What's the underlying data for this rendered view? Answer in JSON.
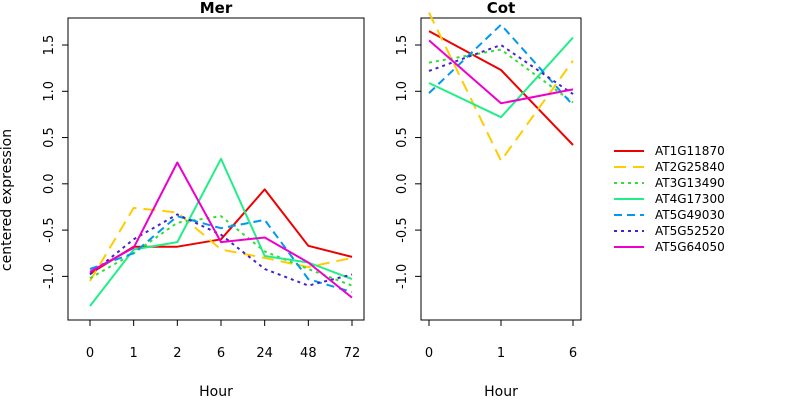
{
  "chart_data": {
    "type": "line",
    "ylabel": "centered expression",
    "legend_position": "right",
    "series_styles": [
      {
        "name": "AT1G11870",
        "color": "#ee0000",
        "dash": "solid"
      },
      {
        "name": "AT2G25840",
        "color": "#ffcc00",
        "dash": "long-dash"
      },
      {
        "name": "AT3G13490",
        "color": "#33dd33",
        "dash": "dotted"
      },
      {
        "name": "AT4G17300",
        "color": "#22ee88",
        "dash": "solid"
      },
      {
        "name": "AT5G49030",
        "color": "#0099ee",
        "dash": "dashed"
      },
      {
        "name": "AT5G52520",
        "color": "#4422cc",
        "dash": "dotted"
      },
      {
        "name": "AT5G64050",
        "color": "#ee00cc",
        "dash": "solid"
      }
    ],
    "panels": [
      {
        "title": "Mer",
        "xlabel": "Hour",
        "categories": [
          "0",
          "1",
          "2",
          "6",
          "24",
          "48",
          "72"
        ],
        "ylim": [
          -1.45,
          1.9
        ],
        "yticks": [
          "-1.0",
          "-0.5",
          "0.0",
          "0.5",
          "1.0",
          "1.5"
        ],
        "series": [
          {
            "name": "AT1G11870",
            "values": [
              -0.97,
              -0.68,
              -0.68,
              -0.6,
              -0.06,
              -0.67,
              -0.79
            ]
          },
          {
            "name": "AT2G25840",
            "values": [
              -1.05,
              -0.26,
              -0.31,
              -0.71,
              -0.8,
              -0.9,
              -0.8
            ]
          },
          {
            "name": "AT3G13490",
            "values": [
              -1.02,
              -0.75,
              -0.42,
              -0.35,
              -0.73,
              -0.92,
              -1.1
            ]
          },
          {
            "name": "AT4G17300",
            "values": [
              -1.32,
              -0.71,
              -0.63,
              0.27,
              -0.78,
              -0.85,
              -1.03
            ]
          },
          {
            "name": "AT5G49030",
            "values": [
              -0.92,
              -0.75,
              -0.35,
              -0.48,
              -0.39,
              -1.03,
              -1.17
            ]
          },
          {
            "name": "AT5G52520",
            "values": [
              -0.98,
              -0.6,
              -0.33,
              -0.55,
              -0.92,
              -1.1,
              -0.98
            ]
          },
          {
            "name": "AT5G64050",
            "values": [
              -0.95,
              -0.69,
              0.23,
              -0.63,
              -0.58,
              -0.85,
              -1.23
            ]
          }
        ]
      },
      {
        "title": "Cot",
        "xlabel": "Hour",
        "categories": [
          "0",
          "1",
          "6"
        ],
        "ylim": [
          -1.45,
          1.9
        ],
        "yticks": [
          "-1.0",
          "-0.5",
          "0.0",
          "0.5",
          "1.0",
          "1.5"
        ],
        "series": [
          {
            "name": "AT1G11870",
            "values": [
              1.65,
              1.23,
              0.42
            ]
          },
          {
            "name": "AT2G25840",
            "values": [
              1.85,
              0.25,
              1.33
            ]
          },
          {
            "name": "AT3G13490",
            "values": [
              1.31,
              1.45,
              0.88
            ]
          },
          {
            "name": "AT4G17300",
            "values": [
              1.09,
              0.72,
              1.58
            ]
          },
          {
            "name": "AT5G49030",
            "values": [
              0.98,
              1.72,
              0.85
            ]
          },
          {
            "name": "AT5G52520",
            "values": [
              1.22,
              1.5,
              0.97
            ]
          },
          {
            "name": "AT5G64050",
            "values": [
              1.55,
              0.87,
              1.02
            ]
          }
        ]
      }
    ]
  }
}
